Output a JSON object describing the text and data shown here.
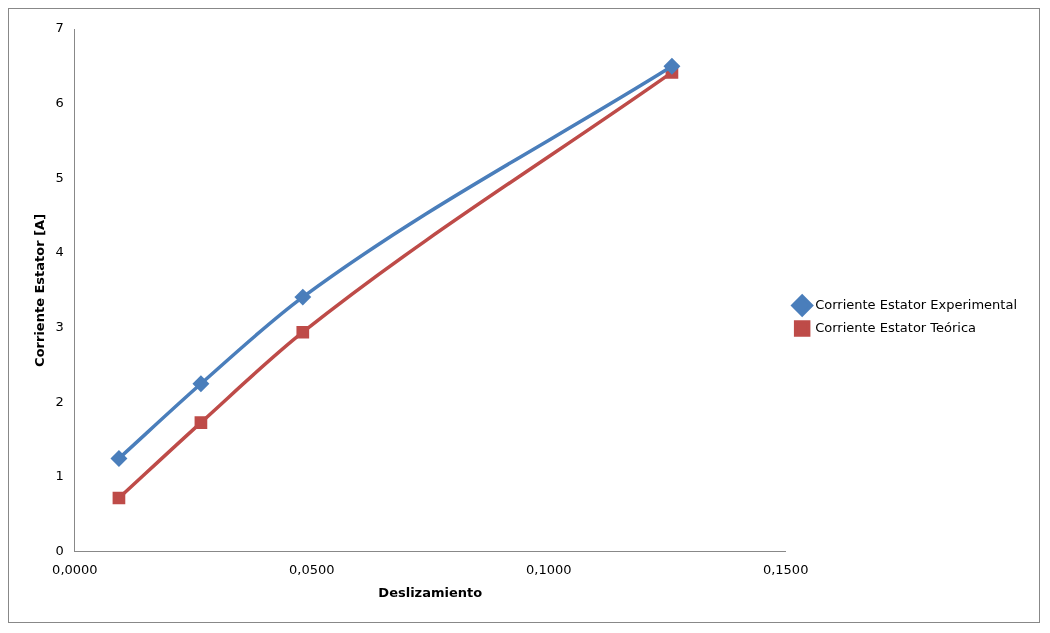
{
  "chart_data": {
    "type": "line",
    "xlabel": "Deslizamiento",
    "ylabel": "Corriente Estator [A]",
    "xlim": [
      0,
      0.15
    ],
    "xticks": [
      {
        "value": 0,
        "label": "0,0000"
      },
      {
        "value": 0.05,
        "label": "0,0500"
      },
      {
        "value": 0.1,
        "label": "0,1000"
      },
      {
        "value": 0.15,
        "label": "0,1500"
      }
    ],
    "ylim": [
      0,
      7
    ],
    "yticks": [
      0,
      1,
      2,
      3,
      4,
      5,
      6,
      7
    ],
    "grid": false,
    "legend": "right",
    "series": [
      {
        "name": "Corriente Estator Experimental",
        "color": "#4a7ebb",
        "marker": "diamond",
        "x": [
          0.0093,
          0.0266,
          0.0481,
          0.126
        ],
        "values": [
          1.25,
          2.25,
          3.41,
          6.5
        ]
      },
      {
        "name": "Corriente Estator Teórica",
        "color": "#be4b48",
        "marker": "square",
        "x": [
          0.0093,
          0.0266,
          0.0481,
          0.126
        ],
        "values": [
          0.72,
          1.73,
          2.94,
          6.42
        ]
      }
    ]
  }
}
